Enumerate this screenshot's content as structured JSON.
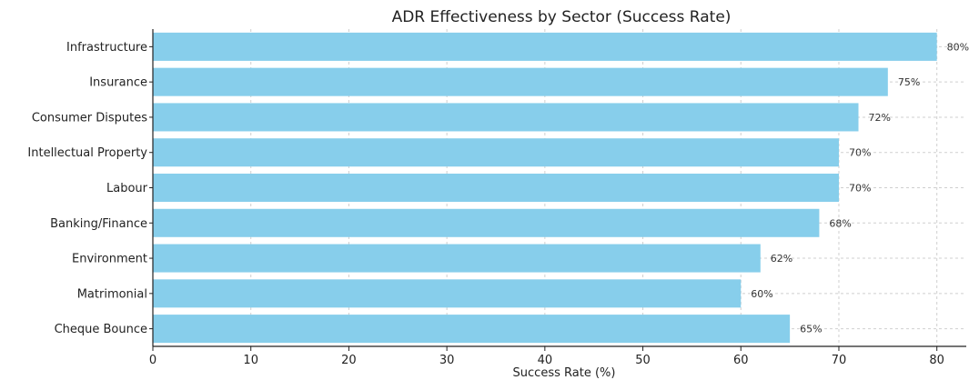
{
  "chart_data": {
    "type": "bar",
    "orientation": "horizontal",
    "title": "ADR Effectiveness by Sector (Success Rate)",
    "xlabel": "Success Rate (%)",
    "ylabel": "",
    "categories": [
      "Infrastructure",
      "Insurance",
      "Consumer Disputes",
      "Intellectual Property",
      "Labour",
      "Banking/Finance",
      "Environment",
      "Matrimonial",
      "Cheque Bounce"
    ],
    "values": [
      80,
      75,
      72,
      70,
      70,
      68,
      62,
      60,
      65
    ],
    "data_labels": [
      "80%",
      "75%",
      "72%",
      "70%",
      "70%",
      "68%",
      "62%",
      "60%",
      "65%"
    ],
    "xlim": [
      0,
      83
    ],
    "xticks": [
      0,
      10,
      20,
      30,
      40,
      50,
      60,
      70,
      80
    ],
    "xtick_labels": [
      "0",
      "10",
      "20",
      "30",
      "40",
      "50",
      "60",
      "70",
      "80"
    ],
    "grid": true,
    "bar_color": "#87CEEB"
  }
}
